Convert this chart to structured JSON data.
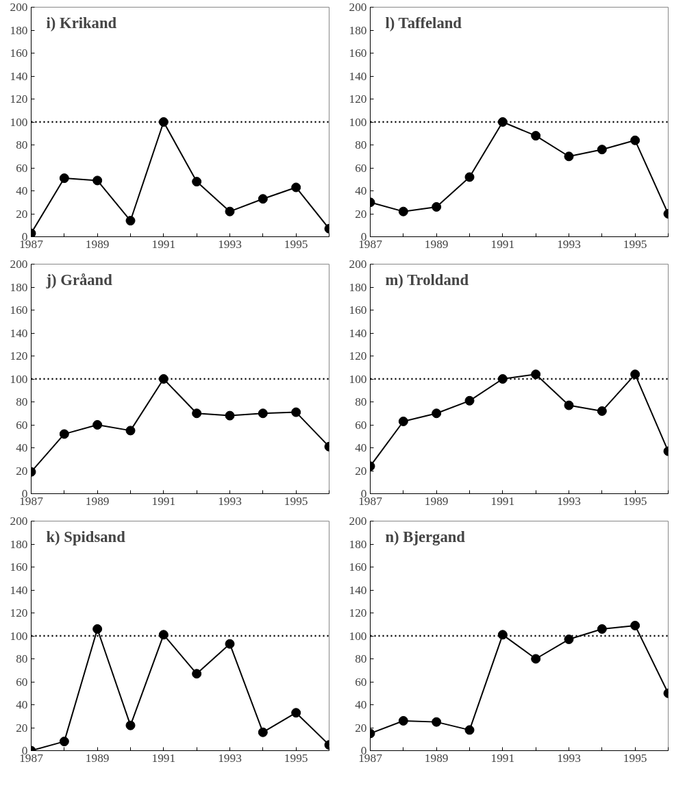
{
  "chart_data": [
    {
      "type": "line",
      "title": "i) Krikand",
      "x": [
        1987,
        1988,
        1989,
        1990,
        1991,
        1992,
        1993,
        1994,
        1995,
        1996
      ],
      "series": [
        {
          "color": "#000000",
          "values": [
            3,
            51,
            49,
            14,
            100,
            48,
            22,
            33,
            43,
            7
          ]
        }
      ],
      "xlim": [
        1987,
        1996
      ],
      "ylim": [
        0,
        200
      ],
      "xticks": [
        1987,
        {
          "value": 1988,
          "label": null
        },
        1989,
        {
          "value": 1990,
          "label": null
        },
        1991,
        {
          "value": 1992,
          "label": null
        },
        1993,
        {
          "value": 1994,
          "label": null
        },
        1995,
        {
          "value": 1996,
          "label": null
        }
      ],
      "yticks": [
        0,
        20,
        40,
        60,
        80,
        100,
        120,
        140,
        160,
        180,
        200
      ],
      "ref_lines": [
        {
          "axis": "y",
          "value": 100,
          "line_style": "dotted"
        }
      ],
      "marker": "circle",
      "grid": false
    },
    {
      "type": "line",
      "title": "l) Taffeland",
      "x": [
        1987,
        1988,
        1989,
        1990,
        1991,
        1992,
        1993,
        1994,
        1995,
        1996
      ],
      "series": [
        {
          "color": "#000000",
          "values": [
            30,
            22,
            26,
            52,
            100,
            88,
            70,
            76,
            84,
            20
          ]
        }
      ],
      "xlim": [
        1987,
        1996
      ],
      "ylim": [
        0,
        200
      ],
      "xticks": [
        1987,
        {
          "value": 1988,
          "label": null
        },
        1989,
        {
          "value": 1990,
          "label": null
        },
        1991,
        {
          "value": 1992,
          "label": null
        },
        1993,
        {
          "value": 1994,
          "label": null
        },
        1995,
        {
          "value": 1996,
          "label": null
        }
      ],
      "yticks": [
        0,
        20,
        40,
        60,
        80,
        100,
        120,
        140,
        160,
        180,
        200
      ],
      "ref_lines": [
        {
          "axis": "y",
          "value": 100,
          "line_style": "dotted"
        }
      ],
      "marker": "circle",
      "grid": false
    },
    {
      "type": "line",
      "title": "j) Gråand",
      "x": [
        1987,
        1988,
        1989,
        1990,
        1991,
        1992,
        1993,
        1994,
        1995,
        1996
      ],
      "series": [
        {
          "color": "#000000",
          "values": [
            19,
            52,
            60,
            55,
            100,
            70,
            68,
            70,
            71,
            41
          ]
        }
      ],
      "xlim": [
        1987,
        1996
      ],
      "ylim": [
        0,
        200
      ],
      "xticks": [
        1987,
        {
          "value": 1988,
          "label": null
        },
        1989,
        {
          "value": 1990,
          "label": null
        },
        1991,
        {
          "value": 1992,
          "label": null
        },
        1993,
        {
          "value": 1994,
          "label": null
        },
        1995,
        {
          "value": 1996,
          "label": null
        }
      ],
      "yticks": [
        0,
        20,
        40,
        60,
        80,
        100,
        120,
        140,
        160,
        180,
        200
      ],
      "ref_lines": [
        {
          "axis": "y",
          "value": 100,
          "line_style": "dotted"
        }
      ],
      "marker": "circle",
      "grid": false
    },
    {
      "type": "line",
      "title": "m) Troldand",
      "x": [
        1987,
        1988,
        1989,
        1990,
        1991,
        1992,
        1993,
        1994,
        1995,
        1996
      ],
      "series": [
        {
          "color": "#000000",
          "values": [
            24,
            63,
            70,
            81,
            100,
            104,
            77,
            72,
            104,
            37
          ]
        }
      ],
      "xlim": [
        1987,
        1996
      ],
      "ylim": [
        0,
        200
      ],
      "xticks": [
        1987,
        {
          "value": 1988,
          "label": null
        },
        1989,
        {
          "value": 1990,
          "label": null
        },
        1991,
        {
          "value": 1992,
          "label": null
        },
        1993,
        {
          "value": 1994,
          "label": null
        },
        1995,
        {
          "value": 1996,
          "label": null
        }
      ],
      "yticks": [
        0,
        20,
        40,
        60,
        80,
        100,
        120,
        140,
        160,
        180,
        200
      ],
      "ref_lines": [
        {
          "axis": "y",
          "value": 100,
          "line_style": "dotted"
        }
      ],
      "marker": "circle",
      "grid": false
    },
    {
      "type": "line",
      "title": "k) Spidsand",
      "x": [
        1987,
        1988,
        1989,
        1990,
        1991,
        1992,
        1993,
        1994,
        1995,
        1996
      ],
      "series": [
        {
          "color": "#000000",
          "values": [
            0,
            8,
            106,
            22,
            101,
            67,
            93,
            16,
            33,
            5
          ]
        }
      ],
      "xlim": [
        1987,
        1996
      ],
      "ylim": [
        0,
        200
      ],
      "xticks": [
        1987,
        {
          "value": 1988,
          "label": null
        },
        1989,
        {
          "value": 1990,
          "label": null
        },
        1991,
        {
          "value": 1992,
          "label": null
        },
        1993,
        {
          "value": 1994,
          "label": null
        },
        1995,
        {
          "value": 1996,
          "label": null
        }
      ],
      "yticks": [
        0,
        20,
        40,
        60,
        80,
        100,
        120,
        140,
        160,
        180,
        200
      ],
      "ref_lines": [
        {
          "axis": "y",
          "value": 100,
          "line_style": "dotted"
        }
      ],
      "marker": "circle",
      "grid": false
    },
    {
      "type": "line",
      "title": "n) Bjergand",
      "x": [
        1987,
        1988,
        1989,
        1990,
        1991,
        1992,
        1993,
        1994,
        1995,
        1996
      ],
      "series": [
        {
          "color": "#000000",
          "values": [
            15,
            26,
            25,
            18,
            101,
            80,
            97,
            106,
            109,
            50
          ]
        }
      ],
      "xlim": [
        1987,
        1996
      ],
      "ylim": [
        0,
        200
      ],
      "xticks": [
        1987,
        {
          "value": 1988,
          "label": null
        },
        1989,
        {
          "value": 1990,
          "label": null
        },
        1991,
        {
          "value": 1992,
          "label": null
        },
        1993,
        {
          "value": 1994,
          "label": null
        },
        1995,
        {
          "value": 1996,
          "label": null
        }
      ],
      "yticks": [
        0,
        20,
        40,
        60,
        80,
        100,
        120,
        140,
        160,
        180,
        200
      ],
      "ref_lines": [
        {
          "axis": "y",
          "value": 100,
          "line_style": "dotted"
        }
      ],
      "marker": "circle",
      "grid": false
    }
  ]
}
